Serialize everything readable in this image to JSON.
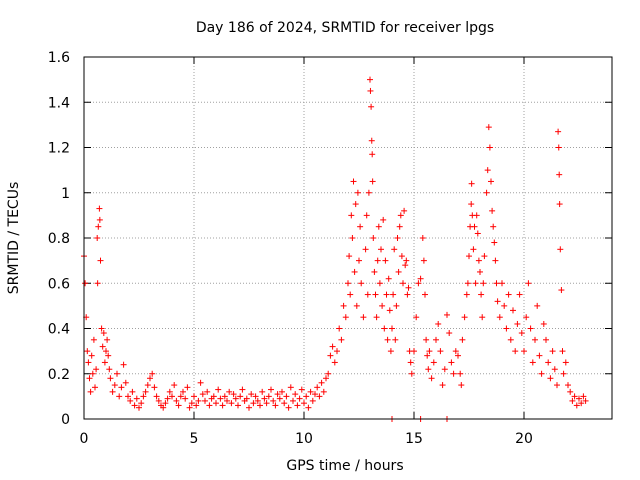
{
  "chart_data": {
    "type": "scatter",
    "title": "Day 186 of 2024, SRMTID for receiver lpgs",
    "xlabel": "GPS time / hours",
    "ylabel": "SRMTID / TECUs",
    "xlim": [
      0,
      24
    ],
    "ylim": [
      0,
      1.6
    ],
    "xticks": [
      0,
      5,
      10,
      15,
      20
    ],
    "xtick_labels": [
      "0",
      "5",
      "10",
      "15",
      "20"
    ],
    "yticks": [
      0,
      0.2,
      0.4,
      0.6,
      0.8,
      1,
      1.2,
      1.4,
      1.6
    ],
    "ytick_labels": [
      "0",
      "0.2",
      "0.4",
      "0.6",
      "0.8",
      "1",
      "1.2",
      "1.4",
      "1.6"
    ],
    "grid": true,
    "marker": "+",
    "color": "#ff0000",
    "series": [
      {
        "name": "SRMTID",
        "points": [
          [
            0.0,
            0.72
          ],
          [
            0.05,
            0.6
          ],
          [
            0.1,
            0.45
          ],
          [
            0.15,
            0.3
          ],
          [
            0.2,
            0.25
          ],
          [
            0.25,
            0.18
          ],
          [
            0.3,
            0.12
          ],
          [
            0.35,
            0.28
          ],
          [
            0.4,
            0.2
          ],
          [
            0.45,
            0.35
          ],
          [
            0.5,
            0.14
          ],
          [
            0.55,
            0.22
          ],
          [
            0.6,
            0.8
          ],
          [
            0.62,
            0.6
          ],
          [
            0.65,
            0.85
          ],
          [
            0.7,
            0.93
          ],
          [
            0.72,
            0.88
          ],
          [
            0.75,
            0.7
          ],
          [
            0.8,
            0.4
          ],
          [
            0.85,
            0.32
          ],
          [
            0.9,
            0.38
          ],
          [
            0.95,
            0.25
          ],
          [
            1.0,
            0.3
          ],
          [
            1.05,
            0.35
          ],
          [
            1.1,
            0.28
          ],
          [
            1.15,
            0.22
          ],
          [
            1.2,
            0.18
          ],
          [
            1.3,
            0.12
          ],
          [
            1.4,
            0.15
          ],
          [
            1.5,
            0.2
          ],
          [
            1.6,
            0.1
          ],
          [
            1.7,
            0.14
          ],
          [
            1.8,
            0.24
          ],
          [
            1.9,
            0.16
          ],
          [
            2.0,
            0.1
          ],
          [
            2.1,
            0.08
          ],
          [
            2.2,
            0.12
          ],
          [
            2.3,
            0.06
          ],
          [
            2.4,
            0.09
          ],
          [
            2.5,
            0.05
          ],
          [
            2.6,
            0.07
          ],
          [
            2.7,
            0.1
          ],
          [
            2.8,
            0.12
          ],
          [
            2.9,
            0.15
          ],
          [
            3.0,
            0.18
          ],
          [
            3.1,
            0.2
          ],
          [
            3.2,
            0.14
          ],
          [
            3.3,
            0.1
          ],
          [
            3.4,
            0.08
          ],
          [
            3.5,
            0.06
          ],
          [
            3.6,
            0.05
          ],
          [
            3.7,
            0.07
          ],
          [
            3.8,
            0.09
          ],
          [
            3.9,
            0.12
          ],
          [
            4.0,
            0.1
          ],
          [
            4.1,
            0.15
          ],
          [
            4.2,
            0.08
          ],
          [
            4.3,
            0.06
          ],
          [
            4.4,
            0.1
          ],
          [
            4.5,
            0.12
          ],
          [
            4.6,
            0.09
          ],
          [
            4.7,
            0.14
          ],
          [
            4.8,
            0.05
          ],
          [
            4.9,
            0.07
          ],
          [
            5.0,
            0.1
          ],
          [
            5.1,
            0.06
          ],
          [
            5.2,
            0.08
          ],
          [
            5.3,
            0.16
          ],
          [
            5.4,
            0.11
          ],
          [
            5.5,
            0.08
          ],
          [
            5.6,
            0.12
          ],
          [
            5.7,
            0.06
          ],
          [
            5.8,
            0.09
          ],
          [
            5.9,
            0.1
          ],
          [
            6.0,
            0.07
          ],
          [
            6.1,
            0.13
          ],
          [
            6.2,
            0.09
          ],
          [
            6.3,
            0.06
          ],
          [
            6.4,
            0.1
          ],
          [
            6.5,
            0.08
          ],
          [
            6.6,
            0.12
          ],
          [
            6.7,
            0.07
          ],
          [
            6.8,
            0.11
          ],
          [
            6.9,
            0.09
          ],
          [
            7.0,
            0.06
          ],
          [
            7.1,
            0.1
          ],
          [
            7.2,
            0.13
          ],
          [
            7.3,
            0.08
          ],
          [
            7.4,
            0.09
          ],
          [
            7.5,
            0.05
          ],
          [
            7.6,
            0.11
          ],
          [
            7.7,
            0.07
          ],
          [
            7.8,
            0.1
          ],
          [
            7.9,
            0.08
          ],
          [
            8.0,
            0.06
          ],
          [
            8.1,
            0.12
          ],
          [
            8.2,
            0.09
          ],
          [
            8.3,
            0.07
          ],
          [
            8.4,
            0.1
          ],
          [
            8.5,
            0.13
          ],
          [
            8.6,
            0.08
          ],
          [
            8.7,
            0.06
          ],
          [
            8.8,
            0.11
          ],
          [
            8.9,
            0.09
          ],
          [
            9.0,
            0.12
          ],
          [
            9.1,
            0.07
          ],
          [
            9.2,
            0.1
          ],
          [
            9.3,
            0.05
          ],
          [
            9.4,
            0.14
          ],
          [
            9.5,
            0.08
          ],
          [
            9.6,
            0.11
          ],
          [
            9.7,
            0.06
          ],
          [
            9.8,
            0.09
          ],
          [
            9.9,
            0.13
          ],
          [
            10.0,
            0.07
          ],
          [
            10.1,
            0.1
          ],
          [
            10.2,
            0.05
          ],
          [
            10.3,
            0.12
          ],
          [
            10.4,
            0.08
          ],
          [
            10.5,
            0.11
          ],
          [
            10.6,
            0.14
          ],
          [
            10.7,
            0.1
          ],
          [
            10.8,
            0.16
          ],
          [
            10.9,
            0.12
          ],
          [
            11.0,
            0.18
          ],
          [
            11.1,
            0.2
          ],
          [
            11.2,
            0.28
          ],
          [
            11.3,
            0.32
          ],
          [
            11.4,
            0.25
          ],
          [
            11.5,
            0.3
          ],
          [
            11.6,
            0.4
          ],
          [
            11.7,
            0.35
          ],
          [
            11.8,
            0.5
          ],
          [
            11.9,
            0.45
          ],
          [
            12.0,
            0.6
          ],
          [
            12.05,
            0.72
          ],
          [
            12.1,
            0.55
          ],
          [
            12.15,
            0.9
          ],
          [
            12.2,
            0.8
          ],
          [
            12.25,
            1.05
          ],
          [
            12.3,
            0.65
          ],
          [
            12.35,
            0.95
          ],
          [
            12.4,
            0.5
          ],
          [
            12.45,
            1.0
          ],
          [
            12.5,
            0.7
          ],
          [
            12.55,
            0.85
          ],
          [
            12.6,
            0.6
          ],
          [
            12.7,
            0.45
          ],
          [
            12.8,
            0.75
          ],
          [
            12.85,
            0.9
          ],
          [
            12.9,
            0.55
          ],
          [
            12.95,
            1.0
          ],
          [
            13.0,
            1.5
          ],
          [
            13.02,
            1.45
          ],
          [
            13.05,
            1.38
          ],
          [
            13.08,
            1.23
          ],
          [
            13.1,
            1.17
          ],
          [
            13.12,
            1.05
          ],
          [
            13.15,
            0.8
          ],
          [
            13.2,
            0.65
          ],
          [
            13.25,
            0.55
          ],
          [
            13.3,
            0.45
          ],
          [
            13.35,
            0.7
          ],
          [
            13.4,
            0.85
          ],
          [
            13.45,
            0.6
          ],
          [
            13.5,
            0.75
          ],
          [
            13.55,
            0.5
          ],
          [
            13.6,
            0.88
          ],
          [
            13.65,
            0.4
          ],
          [
            13.7,
            0.7
          ],
          [
            13.75,
            0.55
          ],
          [
            13.8,
            0.35
          ],
          [
            13.85,
            0.62
          ],
          [
            13.9,
            0.48
          ],
          [
            13.95,
            0.3
          ],
          [
            14.0,
            0.4
          ],
          [
            14.05,
            0.55
          ],
          [
            14.1,
            0.75
          ],
          [
            14.15,
            0.35
          ],
          [
            14.2,
            0.5
          ],
          [
            14.25,
            0.8
          ],
          [
            14.3,
            0.65
          ],
          [
            14.35,
            0.85
          ],
          [
            14.4,
            0.9
          ],
          [
            14.45,
            0.72
          ],
          [
            14.5,
            0.6
          ],
          [
            14.55,
            0.92
          ],
          [
            14.6,
            0.68
          ],
          [
            14.65,
            0.7
          ],
          [
            14.7,
            0.55
          ],
          [
            14.75,
            0.58
          ],
          [
            14.8,
            0.3
          ],
          [
            14.85,
            0.25
          ],
          [
            14.9,
            0.2
          ],
          [
            15.0,
            0.3
          ],
          [
            15.1,
            0.45
          ],
          [
            15.2,
            0.6
          ],
          [
            15.3,
            0.62
          ],
          [
            15.4,
            0.8
          ],
          [
            15.45,
            0.7
          ],
          [
            15.5,
            0.55
          ],
          [
            15.55,
            0.35
          ],
          [
            15.6,
            0.28
          ],
          [
            15.65,
            0.22
          ],
          [
            15.7,
            0.3
          ],
          [
            15.8,
            0.18
          ],
          [
            15.9,
            0.25
          ],
          [
            16.0,
            0.35
          ],
          [
            16.1,
            0.42
          ],
          [
            16.2,
            0.3
          ],
          [
            16.3,
            0.15
          ],
          [
            16.4,
            0.22
          ],
          [
            16.5,
            0.46
          ],
          [
            16.6,
            0.38
          ],
          [
            16.7,
            0.25
          ],
          [
            16.8,
            0.2
          ],
          [
            16.9,
            0.3
          ],
          [
            17.0,
            0.28
          ],
          [
            17.1,
            0.2
          ],
          [
            17.15,
            0.15
          ],
          [
            17.2,
            0.35
          ],
          [
            17.3,
            0.45
          ],
          [
            17.4,
            0.55
          ],
          [
            17.45,
            0.6
          ],
          [
            17.5,
            0.72
          ],
          [
            17.55,
            0.85
          ],
          [
            17.6,
            0.95
          ],
          [
            17.62,
            1.04
          ],
          [
            17.65,
            0.9
          ],
          [
            17.7,
            0.75
          ],
          [
            17.75,
            0.85
          ],
          [
            17.8,
            0.6
          ],
          [
            17.85,
            0.9
          ],
          [
            17.9,
            0.82
          ],
          [
            17.95,
            0.7
          ],
          [
            18.0,
            0.65
          ],
          [
            18.05,
            0.55
          ],
          [
            18.1,
            0.45
          ],
          [
            18.15,
            0.6
          ],
          [
            18.2,
            0.72
          ],
          [
            18.3,
            1.0
          ],
          [
            18.35,
            1.1
          ],
          [
            18.4,
            1.29
          ],
          [
            18.45,
            1.2
          ],
          [
            18.5,
            1.05
          ],
          [
            18.55,
            0.92
          ],
          [
            18.6,
            0.85
          ],
          [
            18.65,
            0.78
          ],
          [
            18.7,
            0.7
          ],
          [
            18.75,
            0.6
          ],
          [
            18.8,
            0.52
          ],
          [
            18.9,
            0.45
          ],
          [
            19.0,
            0.6
          ],
          [
            19.1,
            0.5
          ],
          [
            19.2,
            0.4
          ],
          [
            19.3,
            0.55
          ],
          [
            19.4,
            0.35
          ],
          [
            19.5,
            0.48
          ],
          [
            19.6,
            0.3
          ],
          [
            19.7,
            0.42
          ],
          [
            19.8,
            0.55
          ],
          [
            19.9,
            0.38
          ],
          [
            20.0,
            0.3
          ],
          [
            20.1,
            0.45
          ],
          [
            20.2,
            0.6
          ],
          [
            20.3,
            0.4
          ],
          [
            20.4,
            0.25
          ],
          [
            20.5,
            0.35
          ],
          [
            20.6,
            0.5
          ],
          [
            20.7,
            0.28
          ],
          [
            20.8,
            0.2
          ],
          [
            20.9,
            0.42
          ],
          [
            21.0,
            0.35
          ],
          [
            21.1,
            0.25
          ],
          [
            21.2,
            0.18
          ],
          [
            21.3,
            0.3
          ],
          [
            21.4,
            0.22
          ],
          [
            21.5,
            0.15
          ],
          [
            21.55,
            1.27
          ],
          [
            21.58,
            1.2
          ],
          [
            21.6,
            1.08
          ],
          [
            21.62,
            0.95
          ],
          [
            21.65,
            0.75
          ],
          [
            21.7,
            0.57
          ],
          [
            21.75,
            0.3
          ],
          [
            21.8,
            0.2
          ],
          [
            21.9,
            0.25
          ],
          [
            22.0,
            0.15
          ],
          [
            22.1,
            0.12
          ],
          [
            22.2,
            0.08
          ],
          [
            22.3,
            0.1
          ],
          [
            22.4,
            0.06
          ],
          [
            22.5,
            0.09
          ],
          [
            22.6,
            0.07
          ],
          [
            22.7,
            0.1
          ],
          [
            22.8,
            0.08
          ],
          [
            14.0,
            0.0
          ],
          [
            15.3,
            0.0
          ],
          [
            16.5,
            0.0
          ]
        ]
      }
    ]
  }
}
